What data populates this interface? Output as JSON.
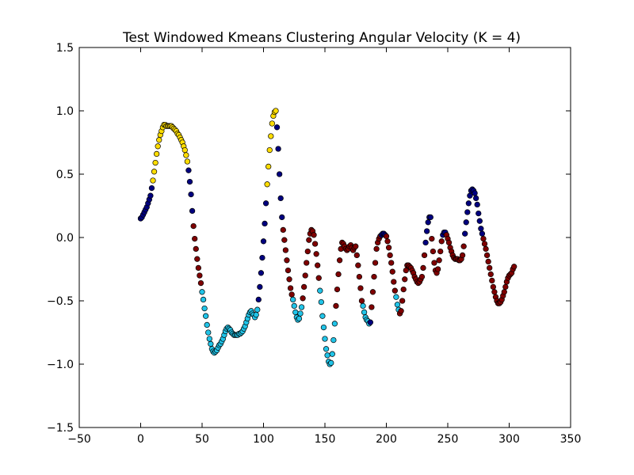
{
  "chart_data": {
    "type": "scatter",
    "title": "Test Windowed Kmeans Clustering Angular Velocity (K = 4)",
    "xlabel": "",
    "ylabel": "",
    "xlim": [
      -50,
      350
    ],
    "ylim": [
      -1.5,
      1.5
    ],
    "xticks": [
      -50,
      0,
      50,
      100,
      150,
      200,
      250,
      300,
      350
    ],
    "yticks": [
      -1.5,
      -1.0,
      -0.5,
      0.0,
      0.5,
      1.0,
      1.5
    ],
    "xtick_labels": [
      "−50",
      "0",
      "50",
      "100",
      "150",
      "200",
      "250",
      "300",
      "350"
    ],
    "ytick_labels": [
      "−1.5",
      "−1.0",
      "−0.5",
      "0.0",
      "0.5",
      "1.0",
      "1.5"
    ],
    "grid": false,
    "legend": "none",
    "cluster_colors": [
      "#00007f",
      "#7f0000",
      "#21c4e8",
      "#ffdd00"
    ],
    "points": [
      [
        0,
        0.15,
        0
      ],
      [
        1,
        0.16,
        0
      ],
      [
        2,
        0.18,
        0
      ],
      [
        3,
        0.2,
        0
      ],
      [
        4,
        0.22,
        0
      ],
      [
        5,
        0.24,
        0
      ],
      [
        6,
        0.27,
        0
      ],
      [
        7,
        0.3,
        0
      ],
      [
        8,
        0.33,
        0
      ],
      [
        9,
        0.39,
        0
      ],
      [
        10,
        0.45,
        3
      ],
      [
        11,
        0.52,
        3
      ],
      [
        12,
        0.59,
        3
      ],
      [
        13,
        0.66,
        3
      ],
      [
        14,
        0.72,
        3
      ],
      [
        15,
        0.77,
        3
      ],
      [
        16,
        0.81,
        3
      ],
      [
        17,
        0.84,
        3
      ],
      [
        18,
        0.87,
        3
      ],
      [
        19,
        0.89,
        3
      ],
      [
        20,
        0.89,
        3
      ],
      [
        21,
        0.88,
        3
      ],
      [
        22,
        0.88,
        3
      ],
      [
        23,
        0.88,
        3
      ],
      [
        24,
        0.88,
        3
      ],
      [
        25,
        0.88,
        3
      ],
      [
        26,
        0.87,
        3
      ],
      [
        27,
        0.86,
        3
      ],
      [
        28,
        0.85,
        3
      ],
      [
        29,
        0.84,
        3
      ],
      [
        30,
        0.82,
        3
      ],
      [
        31,
        0.81,
        3
      ],
      [
        32,
        0.79,
        3
      ],
      [
        33,
        0.77,
        3
      ],
      [
        34,
        0.75,
        3
      ],
      [
        35,
        0.72,
        3
      ],
      [
        36,
        0.69,
        3
      ],
      [
        37,
        0.65,
        3
      ],
      [
        38,
        0.6,
        3
      ],
      [
        39,
        0.53,
        0
      ],
      [
        40,
        0.44,
        0
      ],
      [
        41,
        0.34,
        0
      ],
      [
        42,
        0.21,
        0
      ],
      [
        43,
        0.09,
        1
      ],
      [
        44,
        -0.01,
        1
      ],
      [
        45,
        -0.09,
        1
      ],
      [
        46,
        -0.17,
        1
      ],
      [
        47,
        -0.24,
        1
      ],
      [
        48,
        -0.3,
        1
      ],
      [
        49,
        -0.36,
        1
      ],
      [
        50,
        -0.43,
        2
      ],
      [
        51,
        -0.49,
        2
      ],
      [
        52,
        -0.56,
        2
      ],
      [
        53,
        -0.62,
        2
      ],
      [
        54,
        -0.69,
        2
      ],
      [
        55,
        -0.75,
        2
      ],
      [
        56,
        -0.8,
        2
      ],
      [
        57,
        -0.84,
        2
      ],
      [
        58,
        -0.88,
        2
      ],
      [
        59,
        -0.9,
        2
      ],
      [
        60,
        -0.91,
        2
      ],
      [
        61,
        -0.9,
        2
      ],
      [
        62,
        -0.89,
        2
      ],
      [
        63,
        -0.87,
        2
      ],
      [
        64,
        -0.85,
        2
      ],
      [
        65,
        -0.84,
        2
      ],
      [
        66,
        -0.82,
        2
      ],
      [
        67,
        -0.8,
        2
      ],
      [
        68,
        -0.77,
        2
      ],
      [
        69,
        -0.74,
        2
      ],
      [
        70,
        -0.72,
        2
      ],
      [
        71,
        -0.71,
        2
      ],
      [
        72,
        -0.72,
        2
      ],
      [
        73,
        -0.73,
        2
      ],
      [
        74,
        -0.75,
        2
      ],
      [
        75,
        -0.76,
        2
      ],
      [
        76,
        -0.77,
        2
      ],
      [
        77,
        -0.77,
        2
      ],
      [
        78,
        -0.77,
        2
      ],
      [
        79,
        -0.77,
        2
      ],
      [
        80,
        -0.76,
        2
      ],
      [
        81,
        -0.76,
        2
      ],
      [
        82,
        -0.75,
        2
      ],
      [
        83,
        -0.74,
        2
      ],
      [
        84,
        -0.72,
        2
      ],
      [
        85,
        -0.7,
        2
      ],
      [
        86,
        -0.67,
        2
      ],
      [
        87,
        -0.64,
        2
      ],
      [
        88,
        -0.61,
        2
      ],
      [
        89,
        -0.59,
        2
      ],
      [
        90,
        -0.58,
        2
      ],
      [
        91,
        -0.6,
        2
      ],
      [
        92,
        -0.61,
        2
      ],
      [
        93,
        -0.63,
        2
      ],
      [
        94,
        -0.61,
        2
      ],
      [
        95,
        -0.57,
        2
      ],
      [
        96,
        -0.49,
        0
      ],
      [
        97,
        -0.39,
        0
      ],
      [
        98,
        -0.28,
        0
      ],
      [
        99,
        -0.16,
        0
      ],
      [
        100,
        -0.03,
        0
      ],
      [
        101,
        0.11,
        0
      ],
      [
        102,
        0.27,
        0
      ],
      [
        103,
        0.42,
        3
      ],
      [
        104,
        0.56,
        3
      ],
      [
        105,
        0.69,
        3
      ],
      [
        106,
        0.8,
        3
      ],
      [
        107,
        0.9,
        3
      ],
      [
        108,
        0.96,
        3
      ],
      [
        109,
        0.99,
        3
      ],
      [
        110,
        1.0,
        3
      ],
      [
        111,
        0.87,
        0
      ],
      [
        112,
        0.7,
        0
      ],
      [
        113,
        0.5,
        0
      ],
      [
        114,
        0.31,
        0
      ],
      [
        115,
        0.16,
        0
      ],
      [
        116,
        0.06,
        1
      ],
      [
        117,
        -0.02,
        1
      ],
      [
        118,
        -0.1,
        1
      ],
      [
        119,
        -0.18,
        1
      ],
      [
        120,
        -0.26,
        1
      ],
      [
        121,
        -0.33,
        1
      ],
      [
        122,
        -0.4,
        1
      ],
      [
        123,
        -0.45,
        1
      ],
      [
        124,
        -0.49,
        2
      ],
      [
        125,
        -0.54,
        2
      ],
      [
        126,
        -0.59,
        2
      ],
      [
        127,
        -0.63,
        2
      ],
      [
        128,
        -0.65,
        2
      ],
      [
        129,
        -0.64,
        2
      ],
      [
        130,
        -0.6,
        2
      ],
      [
        131,
        -0.55,
        2
      ],
      [
        132,
        -0.48,
        1
      ],
      [
        133,
        -0.39,
        1
      ],
      [
        134,
        -0.3,
        1
      ],
      [
        135,
        -0.2,
        1
      ],
      [
        136,
        -0.11,
        1
      ],
      [
        137,
        -0.02,
        1
      ],
      [
        138,
        0.03,
        1
      ],
      [
        139,
        0.06,
        1
      ],
      [
        140,
        0.05,
        1
      ],
      [
        141,
        0.02,
        1
      ],
      [
        142,
        -0.05,
        1
      ],
      [
        143,
        -0.13,
        1
      ],
      [
        144,
        -0.22,
        1
      ],
      [
        145,
        -0.32,
        1
      ],
      [
        146,
        -0.42,
        2
      ],
      [
        147,
        -0.51,
        2
      ],
      [
        148,
        -0.62,
        2
      ],
      [
        149,
        -0.71,
        2
      ],
      [
        150,
        -0.8,
        2
      ],
      [
        151,
        -0.88,
        2
      ],
      [
        152,
        -0.93,
        2
      ],
      [
        153,
        -0.98,
        2
      ],
      [
        154,
        -1.0,
        2
      ],
      [
        155,
        -0.99,
        2
      ],
      [
        156,
        -0.92,
        2
      ],
      [
        157,
        -0.81,
        2
      ],
      [
        158,
        -0.68,
        2
      ],
      [
        159,
        -0.54,
        1
      ],
      [
        160,
        -0.41,
        1
      ],
      [
        161,
        -0.29,
        1
      ],
      [
        162,
        -0.18,
        1
      ],
      [
        163,
        -0.09,
        1
      ],
      [
        164,
        -0.04,
        1
      ],
      [
        165,
        -0.05,
        1
      ],
      [
        166,
        -0.07,
        1
      ],
      [
        167,
        -0.09,
        1
      ],
      [
        168,
        -0.1,
        1
      ],
      [
        169,
        -0.09,
        1
      ],
      [
        170,
        -0.07,
        1
      ],
      [
        171,
        -0.06,
        1
      ],
      [
        172,
        -0.08,
        1
      ],
      [
        173,
        -0.1,
        1
      ],
      [
        174,
        -0.08,
        1
      ],
      [
        175,
        -0.07,
        1
      ],
      [
        176,
        -0.14,
        1
      ],
      [
        177,
        -0.22,
        1
      ],
      [
        178,
        -0.31,
        1
      ],
      [
        179,
        -0.4,
        1
      ],
      [
        180,
        -0.5,
        1
      ],
      [
        181,
        -0.54,
        2
      ],
      [
        182,
        -0.59,
        2
      ],
      [
        183,
        -0.63,
        2
      ],
      [
        184,
        -0.65,
        2
      ],
      [
        185,
        -0.66,
        2
      ],
      [
        186,
        -0.68,
        2
      ],
      [
        187,
        -0.67,
        0
      ],
      [
        188,
        -0.55,
        1
      ],
      [
        189,
        -0.43,
        1
      ],
      [
        190,
        -0.31,
        1
      ],
      [
        191,
        -0.2,
        1
      ],
      [
        192,
        -0.09,
        1
      ],
      [
        193,
        -0.04,
        1
      ],
      [
        194,
        -0.01,
        1
      ],
      [
        195,
        0.01,
        1
      ],
      [
        196,
        0.02,
        0
      ],
      [
        197,
        0.03,
        0
      ],
      [
        198,
        0.03,
        0
      ],
      [
        199,
        0.02,
        0
      ],
      [
        200,
        0.01,
        1
      ],
      [
        201,
        -0.03,
        1
      ],
      [
        202,
        -0.08,
        1
      ],
      [
        203,
        -0.14,
        1
      ],
      [
        204,
        -0.2,
        1
      ],
      [
        205,
        -0.27,
        1
      ],
      [
        206,
        -0.35,
        1
      ],
      [
        207,
        -0.42,
        1
      ],
      [
        208,
        -0.47,
        2
      ],
      [
        209,
        -0.53,
        2
      ],
      [
        210,
        -0.57,
        2
      ],
      [
        211,
        -0.6,
        1
      ],
      [
        212,
        -0.58,
        1
      ],
      [
        213,
        -0.5,
        1
      ],
      [
        214,
        -0.41,
        1
      ],
      [
        215,
        -0.33,
        1
      ],
      [
        216,
        -0.26,
        1
      ],
      [
        217,
        -0.22,
        1
      ],
      [
        218,
        -0.22,
        1
      ],
      [
        219,
        -0.23,
        1
      ],
      [
        220,
        -0.24,
        1
      ],
      [
        221,
        -0.26,
        1
      ],
      [
        222,
        -0.28,
        1
      ],
      [
        223,
        -0.31,
        1
      ],
      [
        224,
        -0.33,
        1
      ],
      [
        225,
        -0.35,
        1
      ],
      [
        226,
        -0.36,
        1
      ],
      [
        227,
        -0.35,
        1
      ],
      [
        228,
        -0.33,
        1
      ],
      [
        229,
        -0.31,
        1
      ],
      [
        230,
        -0.24,
        1
      ],
      [
        231,
        -0.14,
        1
      ],
      [
        232,
        -0.04,
        0
      ],
      [
        233,
        0.05,
        0
      ],
      [
        234,
        0.12,
        0
      ],
      [
        235,
        0.16,
        0
      ],
      [
        236,
        0.16,
        0
      ],
      [
        237,
        -0.01,
        1
      ],
      [
        238,
        -0.11,
        1
      ],
      [
        239,
        -0.2,
        1
      ],
      [
        240,
        -0.26,
        1
      ],
      [
        241,
        -0.28,
        1
      ],
      [
        242,
        -0.25,
        1
      ],
      [
        243,
        -0.18,
        1
      ],
      [
        244,
        -0.11,
        1
      ],
      [
        245,
        -0.03,
        1
      ],
      [
        246,
        0.02,
        0
      ],
      [
        247,
        0.04,
        0
      ],
      [
        248,
        0.04,
        0
      ],
      [
        249,
        0.02,
        1
      ],
      [
        250,
        -0.01,
        1
      ],
      [
        251,
        -0.04,
        1
      ],
      [
        252,
        -0.08,
        1
      ],
      [
        253,
        -0.11,
        1
      ],
      [
        254,
        -0.14,
        1
      ],
      [
        255,
        -0.16,
        1
      ],
      [
        256,
        -0.17,
        1
      ],
      [
        257,
        -0.17,
        1
      ],
      [
        258,
        -0.17,
        1
      ],
      [
        259,
        -0.18,
        1
      ],
      [
        260,
        -0.18,
        1
      ],
      [
        261,
        -0.17,
        1
      ],
      [
        262,
        -0.14,
        1
      ],
      [
        263,
        -0.07,
        1
      ],
      [
        264,
        0.03,
        0
      ],
      [
        265,
        0.12,
        0
      ],
      [
        266,
        0.2,
        0
      ],
      [
        267,
        0.27,
        0
      ],
      [
        268,
        0.33,
        0
      ],
      [
        269,
        0.37,
        0
      ],
      [
        270,
        0.38,
        0
      ],
      [
        271,
        0.37,
        0
      ],
      [
        272,
        0.35,
        0
      ],
      [
        273,
        0.31,
        0
      ],
      [
        274,
        0.26,
        0
      ],
      [
        275,
        0.19,
        0
      ],
      [
        276,
        0.13,
        0
      ],
      [
        277,
        0.07,
        0
      ],
      [
        278,
        0.03,
        0
      ],
      [
        279,
        -0.01,
        1
      ],
      [
        280,
        -0.05,
        1
      ],
      [
        281,
        -0.09,
        1
      ],
      [
        282,
        -0.14,
        1
      ],
      [
        283,
        -0.19,
        1
      ],
      [
        284,
        -0.24,
        1
      ],
      [
        285,
        -0.29,
        1
      ],
      [
        286,
        -0.34,
        1
      ],
      [
        287,
        -0.39,
        1
      ],
      [
        288,
        -0.43,
        1
      ],
      [
        289,
        -0.47,
        1
      ],
      [
        290,
        -0.5,
        1
      ],
      [
        291,
        -0.52,
        1
      ],
      [
        292,
        -0.52,
        1
      ],
      [
        293,
        -0.51,
        1
      ],
      [
        294,
        -0.49,
        1
      ],
      [
        295,
        -0.46,
        1
      ],
      [
        296,
        -0.43,
        1
      ],
      [
        297,
        -0.39,
        1
      ],
      [
        298,
        -0.35,
        1
      ],
      [
        299,
        -0.32,
        1
      ],
      [
        300,
        -0.3,
        1
      ],
      [
        301,
        -0.29,
        1
      ],
      [
        302,
        -0.28,
        1
      ],
      [
        303,
        -0.25,
        1
      ],
      [
        304,
        -0.23,
        1
      ]
    ]
  }
}
